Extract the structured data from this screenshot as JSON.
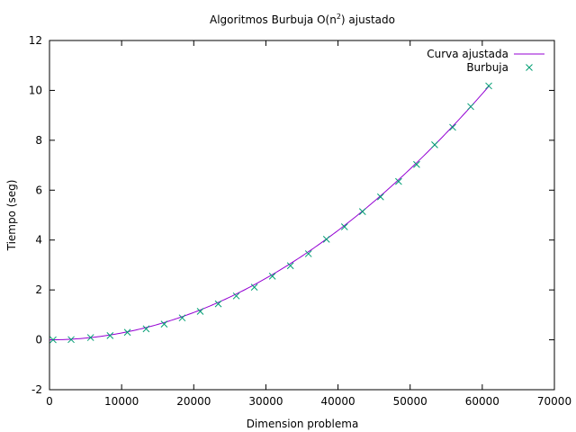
{
  "chart_data": {
    "type": "scatter",
    "title_main": "Algoritmos Burbuja O(n",
    "title_sup": "2",
    "title_end": ") ajustado",
    "xlabel": "Dimension problema",
    "ylabel": "Tiempo (seg)",
    "xlim": [
      0,
      70000
    ],
    "ylim": [
      -2,
      12
    ],
    "xticks": [
      0,
      10000,
      20000,
      30000,
      40000,
      50000,
      60000,
      70000
    ],
    "yticks": [
      -2,
      0,
      2,
      4,
      6,
      8,
      10,
      12
    ],
    "grid": false,
    "legend_position": "top-right",
    "series": [
      {
        "name": "Curva ajustada",
        "kind": "line",
        "color": "#9400d3",
        "model": "a*x^2",
        "a": 2.74e-09,
        "x_range": [
          0,
          61000
        ]
      },
      {
        "name": "Burbuja",
        "kind": "points",
        "marker": "x",
        "color": "#009e73",
        "x": [
          500,
          3000,
          5700,
          8400,
          10800,
          13400,
          15900,
          18400,
          20900,
          23400,
          25900,
          28400,
          30900,
          33400,
          35900,
          38400,
          40900,
          43400,
          45900,
          48400,
          50900,
          53400,
          55900,
          58400,
          60900
        ],
        "y": [
          0.0,
          0.01,
          0.09,
          0.17,
          0.3,
          0.44,
          0.63,
          0.88,
          1.14,
          1.44,
          1.76,
          2.11,
          2.55,
          2.97,
          3.45,
          4.03,
          4.53,
          5.14,
          5.73,
          6.35,
          7.03,
          7.82,
          8.52,
          9.35,
          10.18
        ]
      }
    ]
  }
}
